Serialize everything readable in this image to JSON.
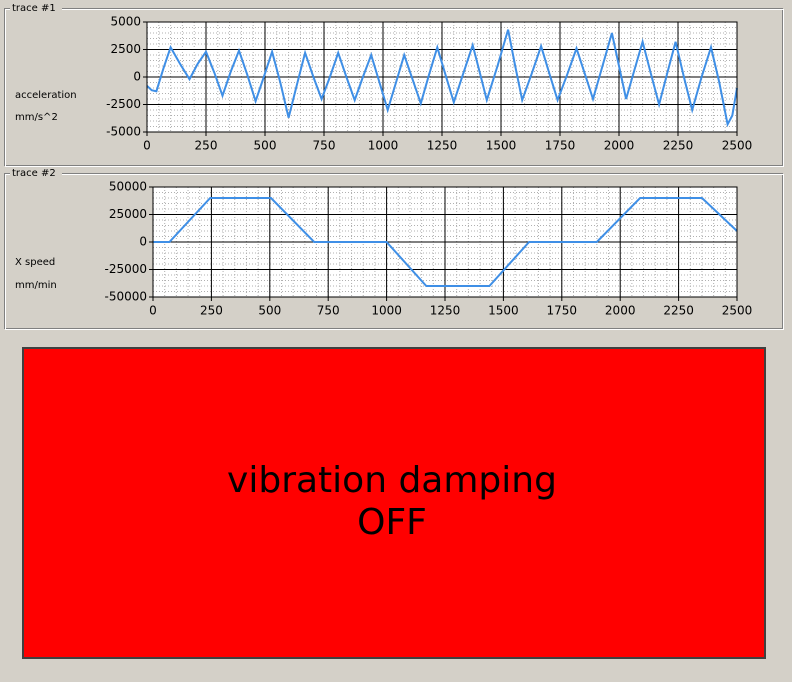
{
  "chart_data": [
    {
      "type": "line",
      "title": "trace #1",
      "ylabel": "acceleration",
      "yunit": "mm/s^2",
      "x": [
        0,
        20,
        40,
        70,
        100,
        140,
        180,
        215,
        250,
        285,
        320,
        355,
        390,
        425,
        460,
        495,
        530,
        565,
        600,
        635,
        670,
        705,
        740,
        775,
        810,
        845,
        880,
        915,
        950,
        985,
        1020,
        1055,
        1090,
        1125,
        1160,
        1195,
        1230,
        1265,
        1300,
        1340,
        1380,
        1410,
        1440,
        1485,
        1530,
        1560,
        1590,
        1630,
        1670,
        1705,
        1740,
        1780,
        1820,
        1855,
        1890,
        1930,
        1970,
        2000,
        2030,
        2065,
        2100,
        2135,
        2170,
        2205,
        2240,
        2275,
        2310,
        2350,
        2390,
        2425,
        2460,
        2480,
        2500
      ],
      "series": [
        {
          "color": "#3f8fe6",
          "values": [
            -800,
            -1200,
            -1300,
            800,
            2700,
            1200,
            -200,
            1200,
            2300,
            400,
            -1700,
            500,
            2400,
            200,
            -2200,
            0,
            2300,
            -500,
            -3700,
            -700,
            2200,
            0,
            -2000,
            0,
            2200,
            0,
            -2100,
            0,
            2000,
            -500,
            -3000,
            -500,
            2000,
            -200,
            -2400,
            200,
            2700,
            200,
            -2300,
            300,
            2900,
            400,
            -2100,
            1000,
            4300,
            1000,
            -2100,
            300,
            2800,
            300,
            -2100,
            200,
            2600,
            300,
            -2000,
            1000,
            4000,
            1000,
            -2000,
            600,
            3200,
            300,
            -2500,
            400,
            3200,
            0,
            -3000,
            0,
            2700,
            -500,
            -4300,
            -3500,
            -1000
          ]
        }
      ],
      "xlim": [
        0,
        2500
      ],
      "xticks": [
        0,
        250,
        500,
        750,
        1000,
        1250,
        1500,
        1750,
        2000,
        2250,
        2500
      ],
      "ylim": [
        -5000,
        5000
      ],
      "yticks": [
        5000,
        2500,
        0,
        -2500,
        -5000
      ],
      "grid": true,
      "minor_grid": 5
    },
    {
      "type": "line",
      "title": "trace #2",
      "ylabel": "X speed",
      "yunit": "mm/min",
      "x": [
        0,
        70,
        245,
        505,
        690,
        1000,
        1170,
        1440,
        1610,
        1900,
        2085,
        2350,
        2500
      ],
      "series": [
        {
          "color": "#3f8fe6",
          "values": [
            0,
            0,
            40000,
            40000,
            0,
            0,
            -40000,
            -40000,
            0,
            0,
            40000,
            40000,
            10000
          ]
        }
      ],
      "xlim": [
        0,
        2500
      ],
      "xticks": [
        0,
        250,
        500,
        750,
        1000,
        1250,
        1500,
        1750,
        2000,
        2250,
        2500
      ],
      "ylim": [
        -50000,
        50000
      ],
      "yticks": [
        50000,
        25000,
        0,
        -25000,
        -50000
      ],
      "grid": true,
      "minor_grid": 5
    }
  ],
  "status": {
    "lines": [
      "vibration damping",
      "OFF"
    ],
    "color": "#ff0000"
  }
}
